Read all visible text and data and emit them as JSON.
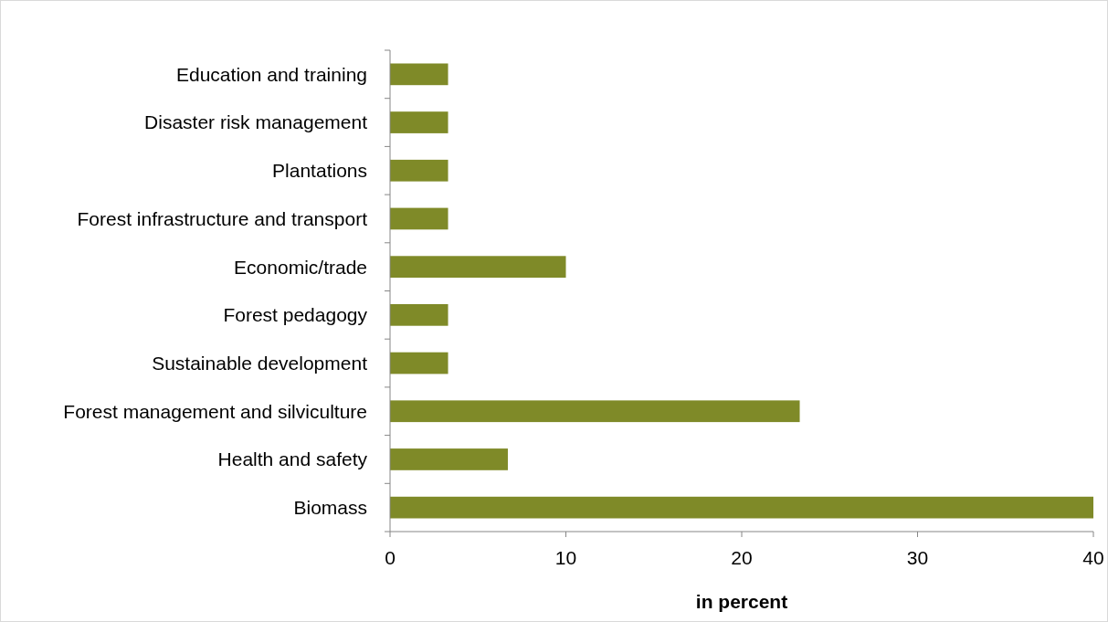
{
  "chart_data": {
    "type": "bar",
    "orientation": "horizontal",
    "xlabel": "in percent",
    "categories": [
      "Education and training",
      "Disaster risk management",
      "Plantations",
      "Forest infrastructure and transport",
      "Economic/trade",
      "Forest pedagogy",
      "Sustainable development",
      "Forest management and silviculture",
      "Health and safety",
      "Biomass"
    ],
    "values": [
      3.3,
      3.3,
      3.3,
      3.3,
      10,
      3.3,
      3.3,
      23.3,
      6.7,
      40
    ],
    "color": "#7f8a28",
    "xlim": [
      0,
      40
    ],
    "xticks": [
      0,
      10,
      20,
      30,
      40
    ],
    "grid": false
  }
}
